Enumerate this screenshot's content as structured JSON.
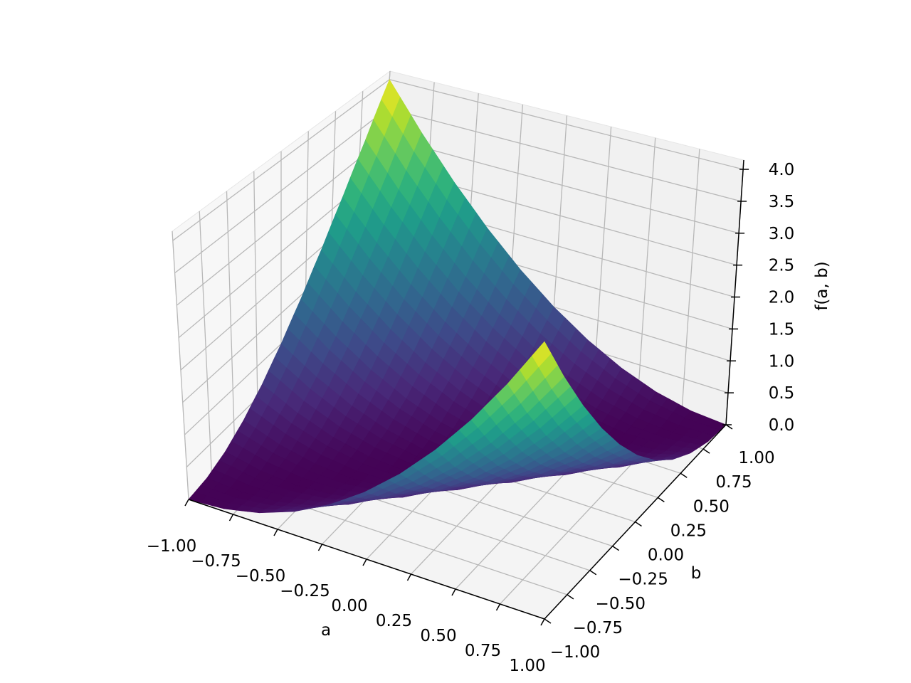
{
  "chart_data": {
    "type": "surface",
    "title": "",
    "xlabel": "a",
    "ylabel": "b",
    "zlabel": "f(a, b)",
    "xlim": [
      -1,
      1
    ],
    "ylim": [
      -1,
      1
    ],
    "zlim": [
      0,
      4
    ],
    "grid": true,
    "colormap": "viridis",
    "x_ticks": [
      "−1.00",
      "−0.75",
      "−0.50",
      "−0.25",
      "0.00",
      "0.25",
      "0.50",
      "0.75",
      "1.00"
    ],
    "y_ticks": [
      "−1.00",
      "−0.75",
      "−0.50",
      "−0.25",
      "0.00",
      "0.25",
      "0.50",
      "0.75",
      "1.00"
    ],
    "z_ticks": [
      "0.0",
      "0.5",
      "1.0",
      "1.5",
      "2.0",
      "2.5",
      "3.0",
      "3.5",
      "4.0"
    ],
    "a": [
      -1,
      -0.8,
      -0.6,
      -0.4,
      -0.2,
      0,
      0.2,
      0.4,
      0.6,
      0.8,
      1
    ],
    "b": [
      -1,
      -0.8,
      -0.6,
      -0.4,
      -0.2,
      0,
      0.2,
      0.4,
      0.6,
      0.8,
      1
    ],
    "z": [
      [
        0,
        0.04,
        0.16,
        0.36,
        0.64,
        1,
        1.44,
        1.96,
        2.56,
        3.24,
        4
      ],
      [
        0.04,
        0,
        0.04,
        0.16,
        0.36,
        0.64,
        1,
        1.44,
        1.96,
        2.56,
        3.24
      ],
      [
        0.16,
        0.04,
        0,
        0.04,
        0.16,
        0.36,
        0.64,
        1,
        1.44,
        1.96,
        2.56
      ],
      [
        0.36,
        0.16,
        0.04,
        0,
        0.04,
        0.16,
        0.36,
        0.64,
        1,
        1.44,
        1.96
      ],
      [
        0.64,
        0.36,
        0.16,
        0.04,
        0,
        0.04,
        0.16,
        0.36,
        0.64,
        1,
        1.44
      ],
      [
        1,
        0.64,
        0.36,
        0.16,
        0.04,
        0,
        0.04,
        0.16,
        0.36,
        0.64,
        1
      ],
      [
        1.44,
        1,
        0.64,
        0.36,
        0.16,
        0.04,
        0,
        0.04,
        0.16,
        0.36,
        0.64
      ],
      [
        1.96,
        1.44,
        1,
        0.64,
        0.36,
        0.16,
        0.04,
        0,
        0.04,
        0.16,
        0.36
      ],
      [
        2.56,
        1.96,
        1.44,
        1,
        0.64,
        0.36,
        0.16,
        0.04,
        0,
        0.04,
        0.16
      ],
      [
        3.24,
        2.56,
        1.96,
        1.44,
        1,
        0.64,
        0.36,
        0.16,
        0.04,
        0,
        0.04
      ],
      [
        4,
        3.24,
        2.56,
        1.96,
        1.44,
        1,
        0.64,
        0.36,
        0.16,
        0.04,
        0
      ]
    ]
  }
}
